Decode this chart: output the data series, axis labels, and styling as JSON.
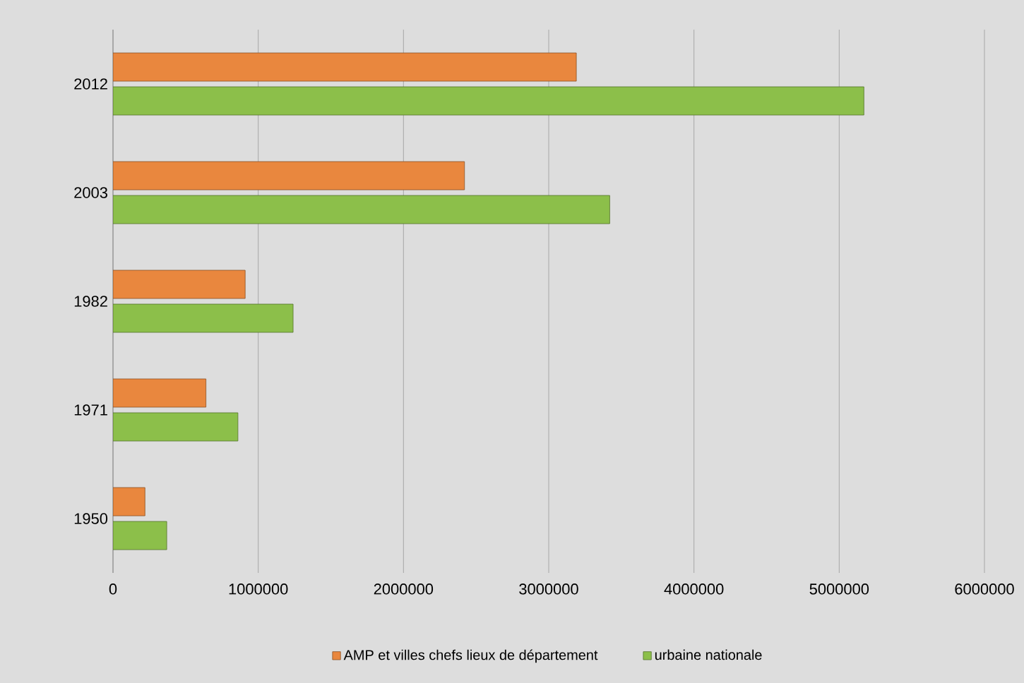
{
  "chart_data": {
    "type": "bar",
    "orientation": "horizontal",
    "categories": [
      "2012",
      "2003",
      "1982",
      "1971",
      "1950"
    ],
    "series": [
      {
        "name": "AMP et villes chefs lieux de département",
        "color": "#e9873e",
        "values": [
          3190000,
          2420000,
          910000,
          640000,
          220000
        ]
      },
      {
        "name": "urbaine nationale",
        "color": "#8cbf4a",
        "values": [
          5170000,
          3420000,
          1240000,
          860000,
          370000
        ]
      }
    ],
    "xlim": [
      0,
      6000000
    ],
    "xticks": [
      0,
      1000000,
      2000000,
      3000000,
      4000000,
      5000000,
      6000000
    ],
    "grid": "x",
    "legend": "bottom"
  }
}
